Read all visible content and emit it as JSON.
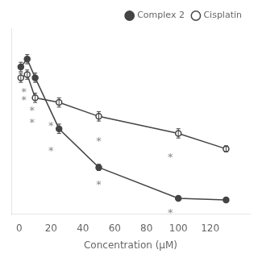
{
  "chart_data": {
    "type": "line",
    "x": [
      1,
      5,
      10,
      25,
      50,
      100,
      130
    ],
    "series": [
      {
        "name": "Complex 2",
        "color": "#444444",
        "marker": "circle",
        "values": [
          95,
          100,
          88,
          55,
          30,
          10,
          9
        ],
        "errors": [
          3,
          3,
          3,
          3,
          2,
          1,
          1
        ]
      },
      {
        "name": "Cisplatin",
        "color": "#444444",
        "marker": "open_circle",
        "values": [
          88,
          90,
          75,
          72,
          63,
          52,
          42
        ],
        "errors": [
          3,
          3,
          3,
          3,
          3,
          3,
          2
        ]
      }
    ],
    "annotations": [
      {
        "x": 3,
        "y": 80,
        "text": "*",
        "color": "#888888"
      },
      {
        "x": 8,
        "y": 68,
        "text": "*",
        "color": "#888888"
      },
      {
        "x": 20,
        "y": 42,
        "text": "*",
        "color": "#888888"
      },
      {
        "x": 50,
        "y": 20,
        "text": "*",
        "color": "#888888"
      },
      {
        "x": 95,
        "y": 2,
        "text": "*",
        "color": "#888888"
      },
      {
        "x": 3,
        "y": 75,
        "text": "*",
        "color": "#888888"
      },
      {
        "x": 8,
        "y": 60,
        "text": "*",
        "color": "#888888"
      },
      {
        "x": 20,
        "y": 58,
        "text": "*",
        "color": "#888888"
      },
      {
        "x": 50,
        "y": 48,
        "text": "*",
        "color": "#888888"
      },
      {
        "x": 95,
        "y": 38,
        "text": "*",
        "color": "#888888"
      }
    ],
    "xlabel": "Concentration (μM)",
    "xlim": [
      -5,
      145
    ],
    "xticks": [
      0,
      20,
      40,
      60,
      80,
      100,
      120
    ],
    "ylim": [
      0,
      120
    ],
    "tick_labels": "x",
    "grid": false,
    "legend": "upper right"
  }
}
